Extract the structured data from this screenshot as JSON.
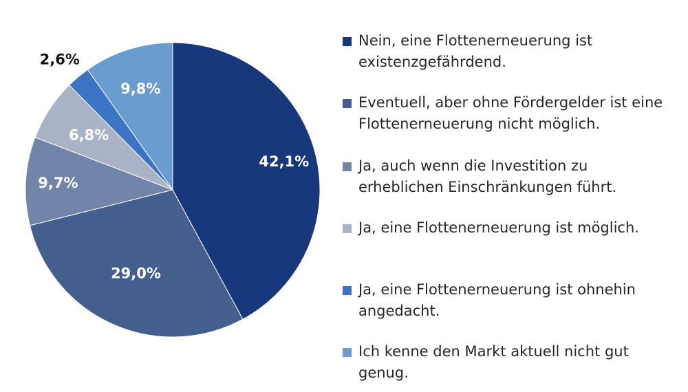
{
  "chart_data": {
    "type": "pie",
    "slices": [
      {
        "label": "Nein, eine Flottenerneuerung ist existenzgefährdend.",
        "value": 42.1,
        "value_label": "42,1%",
        "color": "#17387a",
        "label_color": "#ffffff"
      },
      {
        "label": "Eventuell, aber ohne Fördergelder ist eine Flottenerneuerung nicht möglich.",
        "value": 29.0,
        "value_label": "29,0%",
        "color": "#445e8e",
        "label_color": "#ffffff"
      },
      {
        "label": "Ja, auch wenn die Investition zu erheblichen Einschränkungen führt.",
        "value": 9.7,
        "value_label": "9,7%",
        "color": "#7185aa",
        "label_color": "#ffffff"
      },
      {
        "label": "Ja, eine Flottenerneuerung ist möglich.",
        "value": 6.8,
        "value_label": "6,8%",
        "color": "#a9b2c7",
        "label_color": "#ffffff"
      },
      {
        "label": "Ja, eine Flottenerneuerung ist ohnehin angedacht.",
        "value": 2.6,
        "value_label": "2,6%",
        "color": "#3a74c2",
        "label_color": "#111111"
      },
      {
        "label": "Ich kenne den Markt aktuell nicht gut genug.",
        "value": 9.8,
        "value_label": "9,8%",
        "color": "#6a9cd0",
        "label_color": "#ffffff"
      }
    ],
    "legend": [
      {
        "text": "Nein, eine Flottenerneuerung ist\nexistenzgefährdend."
      },
      {
        "text": "Eventuell, aber ohne Fördergelder ist eine\nFlottenerneuerung nicht möglich."
      },
      {
        "text": "Ja, auch wenn die Investition zu\nerheblichen Einschränkungen führt."
      },
      {
        "text": "Ja, eine Flottenerneuerung ist möglich."
      },
      {
        "text": "Ja, eine Flottenerneuerung ist ohnehin\nangedacht."
      },
      {
        "text": "Ich kenne den Markt aktuell nicht gut\ngenug."
      }
    ],
    "legend_placement": "right",
    "start_angle": "12 o'clock",
    "direction": "clockwise"
  }
}
